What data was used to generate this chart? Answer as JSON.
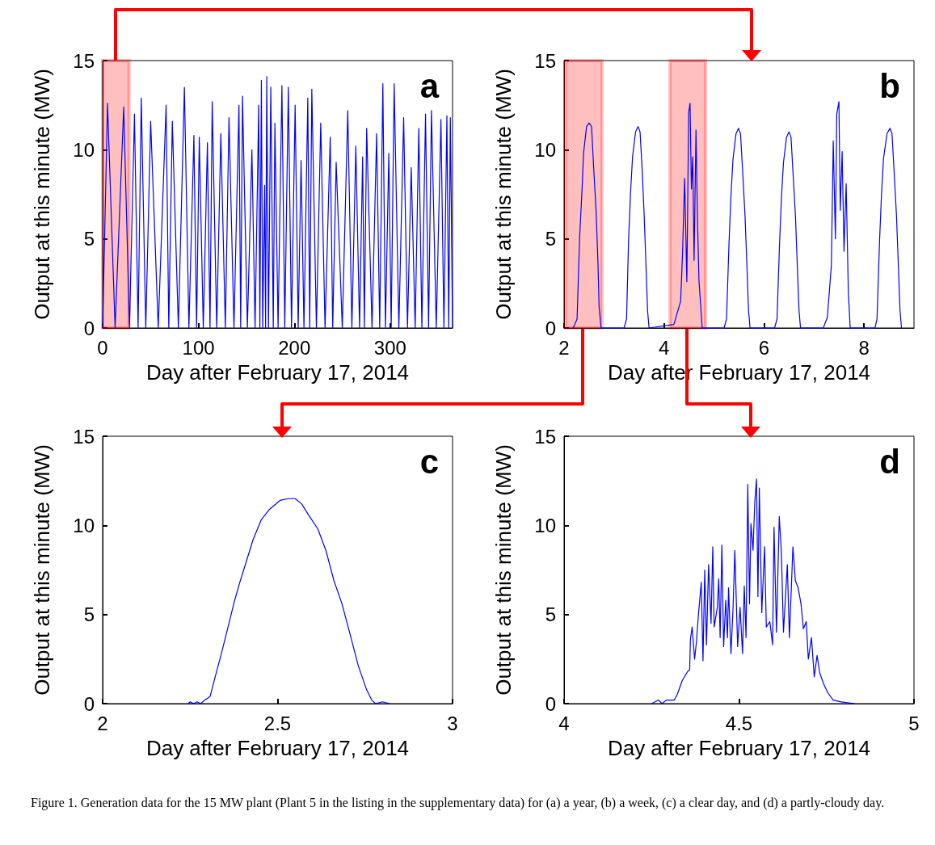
{
  "chart_data": [
    {
      "type": "line",
      "title": "a",
      "xlabel": "Day after February 17, 2014",
      "ylabel": "Output at this minute (MW)",
      "xlim": [
        0,
        365
      ],
      "xticks": [
        0,
        100,
        200,
        300
      ],
      "ylim": [
        0,
        15
      ],
      "yticks": [
        0,
        5,
        10,
        15
      ],
      "bands": [
        {
          "axis": "x",
          "from": 0,
          "to": 27.6,
          "color": "#ff0000"
        }
      ],
      "series": [
        {
          "color": "#0000ff",
          "x": [
            0,
            5.1,
            13,
            22,
            28,
            33.2,
            37,
            40.3,
            45,
            50.1,
            58,
            66.2,
            69,
            72.7,
            79,
            85.3,
            90,
            95.2,
            98,
            100.8,
            105,
            109.3,
            112,
            114.3,
            119,
            123.3,
            128,
            131.8,
            137,
            142.2,
            144,
            145.9,
            151,
            155.7,
            159,
            162.8,
            164,
            165.6,
            167,
            169,
            170,
            171.2,
            173,
            175.4,
            178,
            179.7,
            183,
            187,
            190,
            193.7,
            197,
            200.8,
            204,
            207,
            210,
            214,
            216,
            218.2,
            223,
            227.5,
            232,
            237.4,
            240,
            243.6,
            250,
            255.7,
            260,
            264.1,
            268,
            271.2,
            273,
            275.4,
            281,
            285.8,
            289,
            292.3,
            295,
            298.5,
            301,
            304.1,
            309,
            314,
            318,
            321.9,
            326,
            329.8,
            333,
            336.8,
            340,
            343,
            348,
            352.9,
            356,
            359.1,
            361,
            362.7,
            365
          ],
          "values": [
            0,
            12.6,
            0,
            12.4,
            0,
            12,
            0,
            12.9,
            0,
            11.6,
            0,
            12.5,
            0,
            11.6,
            0,
            13.5,
            0,
            10.8,
            0,
            10.7,
            0,
            10.4,
            0,
            12.7,
            0,
            10.9,
            0,
            11.8,
            0,
            12.5,
            0,
            13,
            0,
            10,
            0,
            12.5,
            0,
            13.9,
            0,
            8,
            0,
            14.1,
            0,
            13.5,
            0,
            11.5,
            0,
            13.6,
            0,
            13.5,
            0,
            12.5,
            0,
            9.4,
            0,
            12.9,
            0,
            13.4,
            0,
            11.5,
            0,
            10.7,
            0,
            9.3,
            0,
            12.2,
            0,
            10.2,
            0,
            9.6,
            0,
            11.2,
            0,
            10.9,
            0,
            13.7,
            0,
            9.8,
            0,
            13.7,
            0,
            11.8,
            0,
            9,
            0,
            11.2,
            0,
            12,
            0,
            12.2,
            0,
            11.7,
            0,
            11.9,
            0,
            11.8,
            0
          ]
        }
      ]
    },
    {
      "type": "line",
      "title": "b",
      "xlabel": "Day after February 17, 2014",
      "ylabel": "Output at this minute (MW)",
      "xlim": [
        2,
        9
      ],
      "xticks": [
        2,
        4,
        6,
        8
      ],
      "ylim": [
        0,
        15
      ],
      "yticks": [
        0,
        5,
        10,
        15
      ],
      "bands": [
        {
          "axis": "x",
          "from": 2.03,
          "to": 2.76,
          "color": "#ff0000"
        },
        {
          "axis": "x",
          "from": 4.12,
          "to": 4.83,
          "color": "#ff0000"
        }
      ],
      "series": [
        {
          "color": "#0000ff",
          "x": [
            2.18,
            2.26,
            2.31,
            2.36,
            2.39,
            2.45,
            2.5,
            2.55,
            2.59,
            2.64,
            2.68,
            2.7,
            2.74,
            3.2,
            3.25,
            3.29,
            3.33,
            3.37,
            3.43,
            3.48,
            3.52,
            3.56,
            3.6,
            3.64,
            3.67,
            3.7,
            4.197,
            4.332,
            4.369,
            4.412,
            4.456,
            4.493,
            4.52,
            4.547,
            4.574,
            4.601,
            4.639,
            4.671,
            4.698,
            4.763,
            5.2,
            5.25,
            5.3,
            5.34,
            5.38,
            5.44,
            5.49,
            5.53,
            5.57,
            5.62,
            5.66,
            5.69,
            5.72,
            6.21,
            6.26,
            6.31,
            6.35,
            6.39,
            6.45,
            6.5,
            6.54,
            6.58,
            6.63,
            6.67,
            6.7,
            6.73,
            7.186,
            7.267,
            7.347,
            7.385,
            7.428,
            7.455,
            7.498,
            7.525,
            7.563,
            7.6,
            7.643,
            7.687,
            7.724,
            8.22,
            8.26,
            8.31,
            8.35,
            8.39,
            8.46,
            8.52,
            8.56,
            8.6,
            8.65,
            8.69,
            8.72,
            8.75
          ],
          "values": [
            0,
            0.5,
            5,
            7.8,
            9.8,
            11.3,
            11.5,
            11.3,
            9.1,
            6.6,
            3.5,
            1.2,
            0,
            0,
            0.5,
            4.9,
            7.6,
            9.6,
            11,
            11.3,
            11,
            9,
            6.5,
            3.4,
            1,
            0,
            0.2,
            1.5,
            4.1,
            8.4,
            2.6,
            12.1,
            12.6,
            7.8,
            9.6,
            3.8,
            11.1,
            5.8,
            2.7,
            0,
            0,
            0.5,
            4.8,
            7.5,
            9.5,
            10.9,
            11.2,
            10.9,
            8.9,
            6.3,
            3.3,
            1,
            0,
            0,
            0.5,
            4.7,
            7.4,
            9.3,
            10.7,
            11,
            10.7,
            8.7,
            6.2,
            3.2,
            1,
            0,
            0,
            0.6,
            3.5,
            10.5,
            5,
            12,
            12.7,
            6.6,
            9.9,
            4.3,
            8.1,
            2,
            0,
            0,
            0.5,
            4.8,
            7.5,
            9.5,
            10.9,
            11.2,
            10.9,
            8.9,
            6.3,
            3.3,
            1,
            0
          ]
        }
      ]
    },
    {
      "type": "line",
      "title": "c",
      "xlabel": "Day after February 17, 2014",
      "ylabel": "Output at this minute (MW)",
      "xlim": [
        2,
        3
      ],
      "xticks": [
        2,
        2.5,
        3
      ],
      "ylim": [
        0,
        15
      ],
      "yticks": [
        0,
        5,
        10,
        15
      ],
      "series": [
        {
          "color": "#0000ff",
          "x": [
            2.245,
            2.25,
            2.26,
            2.27,
            2.28,
            2.292,
            2.307,
            2.323,
            2.338,
            2.361,
            2.376,
            2.392,
            2.411,
            2.43,
            2.453,
            2.477,
            2.507,
            2.53,
            2.55,
            2.569,
            2.588,
            2.615,
            2.638,
            2.661,
            2.684,
            2.707,
            2.731,
            2.754,
            2.769,
            2.78,
            2.8,
            2.82
          ],
          "values": [
            0,
            0.1,
            0,
            0.1,
            0,
            0.2,
            0.4,
            1.6,
            2.7,
            4.5,
            5.7,
            6.8,
            8,
            9.2,
            10.3,
            10.9,
            11.4,
            11.5,
            11.5,
            11.2,
            10.6,
            9.8,
            8.6,
            6.9,
            5.6,
            3.9,
            2.1,
            0.8,
            0.2,
            0,
            0.1,
            0
          ]
        }
      ]
    },
    {
      "type": "line",
      "title": "d",
      "xlabel": "Day after February 17, 2014",
      "ylabel": "Output at this minute (MW)",
      "xlim": [
        4,
        5
      ],
      "xticks": [
        4,
        4.5,
        5
      ],
      "ylim": [
        0,
        15
      ],
      "yticks": [
        0,
        5,
        10,
        15
      ],
      "annotations": [
        "Figure 1. Generation data for the 15 MW plant (Plant 5 in the listing in the supplementary data) for (a) a year, (b) a week, (c) a clear day, and (d) a partly-cloudy day."
      ],
      "series": [
        {
          "color": "#0000ff",
          "x": [
            4.25,
            4.27,
            4.28,
            4.292,
            4.315,
            4.323,
            4.338,
            4.353,
            4.359,
            4.361,
            4.366,
            4.373,
            4.378,
            4.384,
            4.392,
            4.397,
            4.402,
            4.407,
            4.413,
            4.42,
            4.425,
            4.429,
            4.438,
            4.442,
            4.446,
            4.451,
            4.456,
            4.462,
            4.467,
            4.47,
            4.477,
            4.483,
            4.488,
            4.496,
            4.503,
            4.51,
            4.515,
            4.52,
            4.525,
            4.53,
            4.534,
            4.54,
            4.545,
            4.55,
            4.554,
            4.558,
            4.565,
            4.573,
            4.578,
            4.588,
            4.596,
            4.6,
            4.607,
            4.615,
            4.621,
            4.627,
            4.638,
            4.644,
            4.654,
            4.661,
            4.669,
            4.677,
            4.684,
            4.692,
            4.698,
            4.707,
            4.715,
            4.723,
            4.731,
            4.742,
            4.754,
            4.769,
            4.792,
            4.831
          ],
          "values": [
            0,
            0.2,
            0,
            0.2,
            0.2,
            0.5,
            1.3,
            1.8,
            1.9,
            3.6,
            4.3,
            2.5,
            3.4,
            5,
            6.8,
            2.4,
            7.5,
            3.3,
            7.8,
            4.5,
            8.8,
            4.3,
            5.4,
            7,
            3.7,
            8.9,
            3.2,
            5.8,
            3.7,
            6.5,
            2.8,
            5.4,
            8.6,
            3.2,
            5.4,
            2.8,
            6.6,
            3.7,
            12.3,
            5.6,
            10.1,
            8.6,
            11.3,
            12.6,
            6,
            12.1,
            5.1,
            8.8,
            4.3,
            4.6,
            3.3,
            9.9,
            4,
            10.5,
            8.5,
            4,
            7.8,
            3.7,
            8.8,
            6.9,
            6.5,
            5.6,
            4.2,
            4.6,
            2.5,
            3.7,
            1.5,
            2.7,
            1.7,
            1.1,
            0.6,
            0.2,
            0.1,
            0
          ]
        }
      ]
    }
  ]
}
